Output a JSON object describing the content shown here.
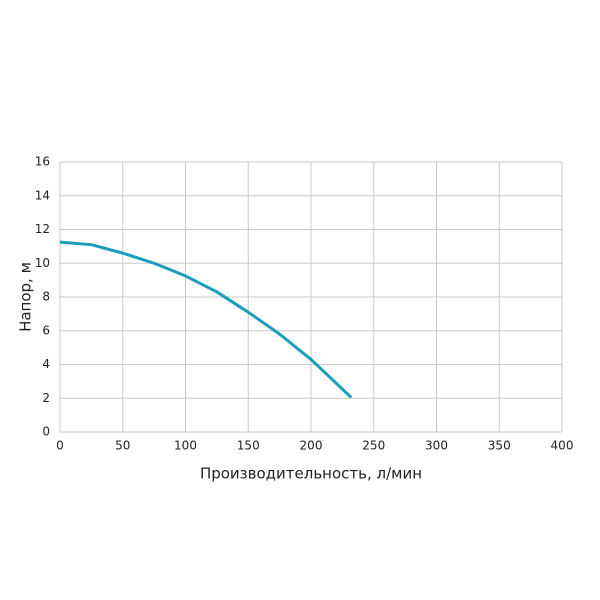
{
  "chart_data": {
    "type": "line",
    "x_label": "Производительность, л/мин",
    "y_label": "Напор, м",
    "x": [
      0,
      25,
      50,
      75,
      100,
      125,
      150,
      175,
      200,
      232
    ],
    "series": [
      {
        "name": "Напор",
        "color": "#1a9fba",
        "values": [
          11.25,
          11.1,
          10.6,
          10.0,
          9.25,
          8.3,
          7.1,
          5.8,
          4.3,
          2.05
        ]
      }
    ],
    "xlim": [
      0,
      400
    ],
    "xticks": [
      0,
      50,
      100,
      150,
      200,
      250,
      300,
      350,
      400
    ],
    "ylim": [
      0,
      16
    ],
    "yticks": [
      0,
      2,
      4,
      6,
      8,
      10,
      12,
      14,
      16
    ],
    "grid": true
  }
}
